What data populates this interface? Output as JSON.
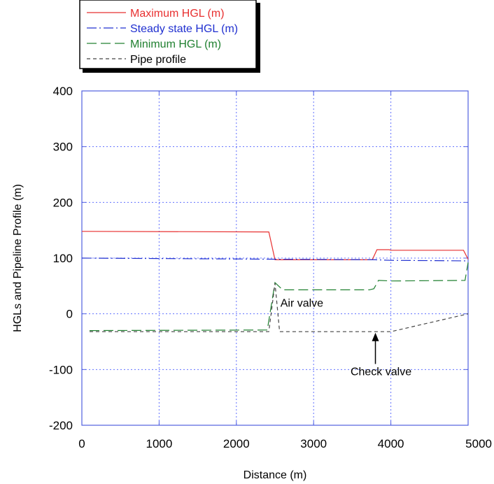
{
  "chart_data": {
    "type": "line",
    "title": "",
    "xlabel": "Distance (m)",
    "ylabel": "HGLs and Pipeline Profile (m)",
    "xlim": [
      0,
      5000
    ],
    "ylim": [
      -200,
      400
    ],
    "x_ticks": [
      0,
      1000,
      2000,
      3000,
      4000,
      5000
    ],
    "x_tick_labels": [
      "0",
      "1000",
      "2000",
      "3000",
      "4000",
      "5000"
    ],
    "y_ticks": [
      400,
      300,
      200,
      100,
      0,
      -100,
      -200
    ],
    "y_tick_labels": [
      "400",
      "300",
      "200",
      "100",
      "0",
      "-100",
      "-200"
    ],
    "grid": true,
    "legend_position": "top-left-outside",
    "series": [
      {
        "name": "Maximum HGL (m)",
        "color": "#e83030",
        "dash": "solid",
        "points": [
          [
            0,
            148
          ],
          [
            2420,
            147
          ],
          [
            2500,
            97
          ],
          [
            3760,
            97
          ],
          [
            3820,
            115
          ],
          [
            3980,
            115
          ],
          [
            4000,
            114
          ],
          [
            4940,
            114
          ],
          [
            5000,
            98
          ]
        ]
      },
      {
        "name": "Steady state HGL (m)",
        "color": "#2030d0",
        "dash": "dashdot",
        "points": [
          [
            0,
            100
          ],
          [
            2500,
            98
          ],
          [
            3800,
            97
          ],
          [
            4000,
            96
          ],
          [
            5000,
            95
          ]
        ]
      },
      {
        "name": "Minimum HGL (m)",
        "color": "#208030",
        "dash": "longdash",
        "points": [
          [
            100,
            -30
          ],
          [
            2400,
            -29
          ],
          [
            2500,
            56
          ],
          [
            2600,
            43
          ],
          [
            3720,
            43
          ],
          [
            3780,
            45
          ],
          [
            3840,
            60
          ],
          [
            4000,
            59
          ],
          [
            4960,
            60
          ],
          [
            5000,
            92
          ]
        ]
      },
      {
        "name": "Pipe profile",
        "color": "#444444",
        "dash": "shortdash",
        "points": [
          [
            100,
            -32
          ],
          [
            2420,
            -32
          ],
          [
            2500,
            55
          ],
          [
            2560,
            -32
          ],
          [
            4000,
            -32
          ],
          [
            5000,
            0
          ]
        ]
      }
    ],
    "annotations": [
      {
        "text": "Air valve",
        "x": 2570,
        "y": 20
      },
      {
        "text": "Check valve",
        "x": 3800,
        "y": -103,
        "arrow_from": [
          3800,
          -90
        ],
        "arrow_to": [
          3800,
          -34
        ]
      }
    ]
  }
}
